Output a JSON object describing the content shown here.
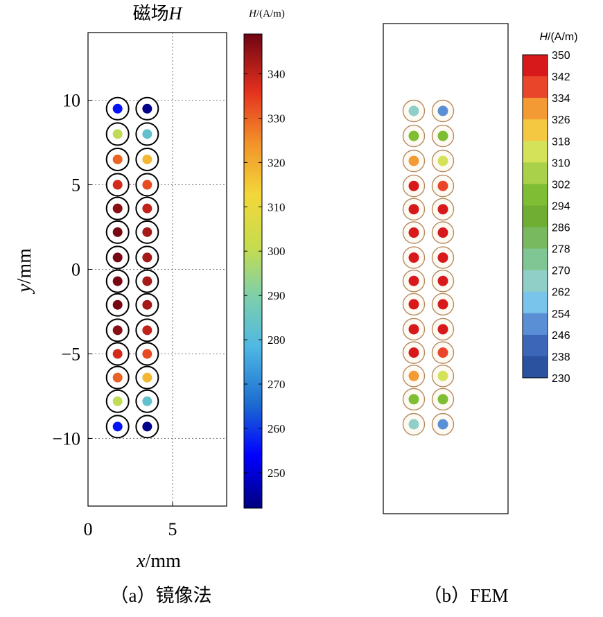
{
  "chart_data": [
    {
      "panel": "a",
      "type": "scatter",
      "title_text": "磁场",
      "title_var": "H",
      "xlabel_var": "x",
      "xlabel_unit": "/mm",
      "ylabel_var": "y",
      "ylabel_unit": "/mm",
      "xlim": [
        0,
        8.2
      ],
      "ylim": [
        -14,
        14
      ],
      "x_ticks": [
        0,
        5
      ],
      "x_tick_labels": [
        "0",
        "5"
      ],
      "y_ticks": [
        10,
        5,
        0,
        -5,
        -10
      ],
      "y_tick_labels": [
        "10",
        "5",
        "0",
        "−5",
        "−10"
      ],
      "grid": "dotted",
      "colorbar": {
        "label_var": "H",
        "label_unit": "/(A/m)",
        "range": [
          242,
          349
        ],
        "ticks": [
          250,
          260,
          270,
          280,
          290,
          300,
          310,
          320,
          330,
          340
        ],
        "tick_labels": [
          "250",
          "260",
          "270",
          "280",
          "290",
          "300",
          "310",
          "320",
          "330",
          "340"
        ]
      },
      "columns_x": [
        1.75,
        3.5
      ],
      "rows_y": [
        9.5,
        8.0,
        6.5,
        5.0,
        3.6,
        2.2,
        0.7,
        -0.7,
        -2.1,
        -3.6,
        -5.0,
        -6.4,
        -7.8,
        -9.3
      ],
      "values_left": [
        256,
        300,
        330,
        338,
        346,
        348,
        348,
        348,
        348,
        346,
        338,
        330,
        300,
        256
      ],
      "values_right": [
        243,
        283,
        318,
        333,
        340,
        343,
        343,
        343,
        343,
        340,
        333,
        318,
        283,
        243
      ]
    },
    {
      "panel": "b",
      "type": "scatter",
      "colorbar": {
        "label_var": "H",
        "label_unit": "/(A/m)",
        "range": [
          230,
          350
        ],
        "levels": [
          350,
          342,
          334,
          326,
          318,
          310,
          302,
          294,
          286,
          278,
          270,
          262,
          254,
          246,
          238,
          230
        ],
        "tick_labels": [
          "350",
          "342",
          "334",
          "326",
          "318",
          "310",
          "302",
          "294",
          "286",
          "278",
          "270",
          "262",
          "254",
          "246",
          "238",
          "230"
        ]
      },
      "columns_x": [
        1.75,
        3.5
      ],
      "rows_y": [
        9.5,
        8.0,
        6.5,
        5.0,
        3.6,
        2.2,
        0.7,
        -0.7,
        -2.1,
        -3.6,
        -5.0,
        -6.4,
        -7.8,
        -9.3
      ],
      "values_left": [
        265,
        295,
        328,
        345,
        347,
        347,
        347,
        347,
        347,
        347,
        345,
        328,
        295,
        265
      ],
      "values_right": [
        250,
        298,
        318,
        338,
        347,
        347,
        347,
        347,
        347,
        347,
        338,
        318,
        298,
        250
      ]
    }
  ],
  "captions": {
    "a_label": "（a）",
    "a_text": "镜像法",
    "b_label": "（b）",
    "b_text": "FEM"
  }
}
